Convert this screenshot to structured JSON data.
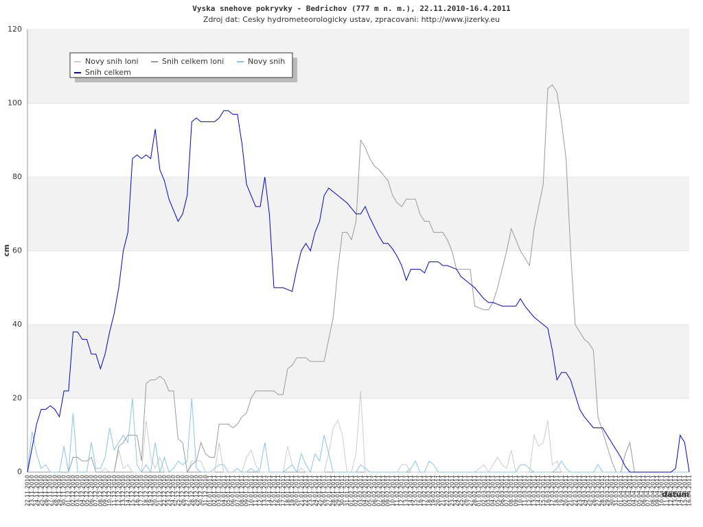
{
  "chart_data": {
    "type": "line",
    "title": "Vyska snehove pokryvky - Bedrichov (777 m n. m.), 22.11.2010-16.4.2011",
    "subtitle": "Zdroj dat: Cesky hydrometeorologicky ustav, zpracovani: http://www.jizerky.eu",
    "y_label": "cm",
    "x_label": "datum",
    "categories": [
      "22.11.2010",
      "23.11.2010",
      "24.11.2010",
      "25.11.2010",
      "26.11.2010",
      "27.11.2010",
      "28.11.2010",
      "29.11.2010",
      "30.11.2010",
      "01.12.2010",
      "02.12.2010",
      "03.12.2010",
      "04.12.2010",
      "05.12.2010",
      "06.12.2010",
      "07.12.2010",
      "08.12.2010",
      "09.12.2010",
      "10.12.2010",
      "11.12.2010",
      "12.12.2010",
      "13.12.2010",
      "14.12.2010",
      "15.12.2010",
      "16.12.2010",
      "17.12.2010",
      "18.12.2010",
      "19.12.2010",
      "20.12.2010",
      "21.12.2010",
      "22.12.2010",
      "23.12.2010",
      "24.12.2010",
      "25.12.2010",
      "26.12.2010",
      "27.12.2010",
      "28.12.2010",
      "29.12.2010",
      "30.12.2010",
      "31.12.2010",
      "01.01.2011",
      "02.01.2011",
      "03.01.2011",
      "04.01.2011",
      "05.01.2011",
      "06.01.2011",
      "07.01.2011",
      "08.01.2011",
      "09.01.2011",
      "10.01.2011",
      "11.01.2011",
      "12.01.2011",
      "13.01.2011",
      "14.01.2011",
      "15.01.2011",
      "16.01.2011",
      "17.01.2011",
      "18.01.2011",
      "19.01.2011",
      "20.01.2011",
      "21.01.2011",
      "22.01.2011",
      "23.01.2011",
      "24.01.2011",
      "25.01.2011",
      "26.01.2011",
      "27.01.2011",
      "28.01.2011",
      "29.01.2011",
      "30.01.2011",
      "31.01.2011",
      "01.02.2011",
      "02.02.2011",
      "03.02.2011",
      "04.02.2011",
      "05.02.2011",
      "06.02.2011",
      "07.02.2011",
      "08.02.2011",
      "09.02.2011",
      "10.02.2011",
      "11.02.2011",
      "12.02.2011",
      "13.02.2011",
      "14.02.2011",
      "15.02.2011",
      "16.02.2011",
      "17.02.2011",
      "18.02.2011",
      "19.02.2011",
      "20.02.2011",
      "21.02.2011",
      "22.02.2011",
      "23.02.2011",
      "24.02.2011",
      "25.02.2011",
      "26.02.2011",
      "27.02.2011",
      "28.02.2011",
      "01.03.2011",
      "02.03.2011",
      "03.03.2011",
      "04.03.2011",
      "05.03.2011",
      "06.03.2011",
      "07.03.2011",
      "08.03.2011",
      "09.03.2011",
      "10.03.2011",
      "11.03.2011",
      "12.03.2011",
      "13.03.2011",
      "14.03.2011",
      "15.03.2011",
      "16.03.2011",
      "17.03.2011",
      "18.03.2011",
      "19.03.2011",
      "20.03.2011",
      "21.03.2011",
      "22.03.2011",
      "23.03.2011",
      "24.03.2011",
      "25.03.2011",
      "26.03.2011",
      "27.03.2011",
      "28.03.2011",
      "29.03.2011",
      "30.03.2011",
      "31.03.2011",
      "01.04.2011",
      "02.04.2011",
      "03.04.2011",
      "04.04.2011",
      "05.04.2011",
      "06.04.2011",
      "07.04.2011",
      "08.04.2011",
      "09.04.2011",
      "10.04.2011",
      "11.04.2011",
      "12.04.2011",
      "13.04.2011",
      "14.04.2011",
      "15.04.2011",
      "16.04.2011"
    ],
    "series": [
      {
        "name": "Novy snih loni",
        "color": "#cccccc",
        "values": [
          0,
          0,
          0,
          0,
          0,
          0,
          0,
          0,
          0,
          0,
          0,
          0,
          0,
          0,
          0,
          0,
          0,
          1,
          0,
          0,
          6,
          1,
          2,
          0,
          0,
          0,
          14,
          4,
          1,
          4,
          0,
          0,
          0,
          0,
          0,
          0,
          3,
          3,
          3,
          0,
          0,
          0,
          8,
          0,
          0,
          0,
          0,
          0,
          4,
          6,
          2,
          0,
          0,
          0,
          0,
          0,
          0,
          7,
          2,
          0,
          1,
          0,
          0,
          0,
          0,
          0,
          5,
          12,
          14,
          10,
          0,
          0,
          5,
          22,
          0,
          0,
          0,
          0,
          0,
          0,
          0,
          0,
          2,
          2,
          0,
          0,
          0,
          0,
          0,
          0,
          0,
          0,
          0,
          0,
          0,
          0,
          0,
          0,
          0,
          1,
          2,
          0,
          2,
          4,
          2,
          1,
          6,
          0,
          0,
          0,
          0,
          10,
          7,
          8,
          14,
          2,
          3,
          0,
          0,
          0,
          0,
          0,
          0,
          0,
          0,
          0,
          0,
          0,
          0,
          0,
          0,
          0,
          0,
          0,
          0,
          0,
          0,
          0,
          0,
          0,
          0,
          0,
          0,
          0,
          0,
          0
        ]
      },
      {
        "name": "Snih celkem loni",
        "color": "#999999",
        "values": [
          0,
          0,
          0,
          0,
          0,
          0,
          0,
          0,
          0,
          0,
          4,
          4,
          3,
          3,
          4,
          0,
          0,
          0,
          0,
          0,
          7,
          8,
          10,
          10,
          10,
          3,
          24,
          25,
          25,
          26,
          25,
          22,
          22,
          9,
          8,
          0,
          2,
          3,
          8,
          5,
          4,
          4,
          13,
          13,
          13,
          12,
          13,
          15,
          16,
          20,
          22,
          22,
          22,
          22,
          22,
          21,
          21,
          28,
          29,
          31,
          31,
          31,
          30,
          30,
          30,
          30,
          36,
          42,
          55,
          65,
          65,
          63,
          68,
          90,
          88,
          85,
          83,
          82,
          80.5,
          79,
          75,
          73,
          72,
          74,
          74,
          74,
          70,
          68,
          68,
          65,
          65,
          65,
          63,
          60,
          55,
          55,
          55,
          55,
          45,
          44.5,
          44,
          44,
          46,
          50,
          55,
          60,
          66,
          63,
          60,
          58,
          56,
          66,
          72,
          78,
          104,
          105,
          103,
          95,
          85,
          60,
          40,
          38,
          36,
          35,
          33,
          15,
          11,
          7,
          3,
          0,
          0,
          5,
          8,
          0,
          0,
          0,
          0,
          0,
          0,
          0,
          0,
          0,
          0,
          0,
          0,
          0
        ]
      },
      {
        "name": "Novy snih",
        "color": "#87c5e8",
        "values": [
          0,
          11,
          5,
          1,
          2,
          0,
          0,
          0,
          7,
          0,
          16,
          0,
          0,
          0,
          8,
          1,
          1,
          4,
          12,
          6,
          8,
          10,
          8,
          20,
          2,
          0,
          2,
          0,
          8,
          0,
          4,
          0,
          1,
          3,
          2,
          3,
          20,
          1,
          0,
          0,
          0,
          1,
          2,
          2,
          0,
          0,
          1,
          0,
          0,
          1,
          0,
          1,
          8,
          0,
          0,
          0,
          0,
          1,
          2,
          0,
          5,
          2,
          0,
          5,
          3,
          10,
          5,
          0,
          0,
          0,
          0,
          0,
          0,
          2,
          1,
          0,
          0,
          0,
          0,
          0,
          0,
          0,
          0,
          0,
          1,
          3,
          0,
          0,
          3,
          2,
          0,
          0,
          0,
          0,
          0,
          0,
          0,
          0,
          0,
          0,
          0,
          0,
          0,
          0,
          0,
          0,
          0,
          0,
          2,
          2,
          1,
          0,
          0,
          0,
          0,
          0,
          1,
          3,
          1,
          0,
          0,
          0,
          0,
          0,
          0,
          2,
          0,
          0,
          0,
          0,
          0,
          0,
          0,
          0,
          0,
          0,
          0,
          0,
          0,
          0,
          0,
          0,
          0,
          0,
          0,
          0
        ]
      },
      {
        "name": "Snih celkem",
        "color": "#0000cc",
        "values": [
          0,
          6.5,
          13,
          17,
          17,
          18,
          17,
          15,
          22,
          22,
          38,
          38,
          36,
          36,
          32,
          32,
          28,
          32,
          38,
          43,
          50,
          60,
          65,
          85,
          86,
          85,
          86,
          85,
          93,
          82,
          79,
          74,
          71,
          68,
          70,
          75,
          95,
          96,
          95,
          95,
          95,
          95,
          96,
          98,
          98,
          97,
          97,
          89,
          78,
          75,
          72,
          72,
          80,
          70,
          50,
          50,
          50,
          49.5,
          49,
          55,
          60,
          62,
          60,
          65,
          68,
          75,
          77,
          76,
          75,
          74,
          73,
          71.5,
          70,
          70,
          72,
          69,
          66.5,
          64,
          62,
          62,
          60.5,
          58.5,
          56,
          52,
          55,
          55,
          55,
          54,
          57,
          57,
          57,
          56,
          56,
          55.5,
          55,
          53,
          52,
          51,
          50,
          48.5,
          47,
          46,
          46,
          45.5,
          45,
          45,
          45,
          45,
          47,
          45,
          43.5,
          42,
          41,
          40,
          39,
          33,
          25,
          27,
          27,
          25,
          21,
          17,
          15,
          13.5,
          12,
          12,
          12,
          10,
          8,
          6,
          4,
          1.5,
          0,
          0,
          0,
          0,
          0,
          0,
          0,
          0,
          0,
          0,
          1,
          10,
          8,
          0
        ]
      }
    ],
    "ylim": [
      0,
      120
    ],
    "yticks": [
      0,
      20,
      40,
      60,
      80,
      100,
      120
    ],
    "grid": true,
    "legend": "top-left"
  }
}
